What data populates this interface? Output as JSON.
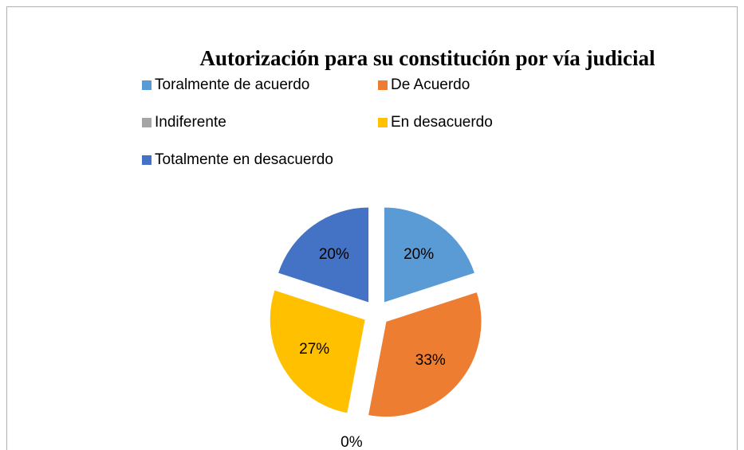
{
  "chart_data": {
    "type": "pie",
    "title": "Autorización para su constitución por vía judicial",
    "categories": [
      "Toralmente de acuerdo",
      "De Acuerdo",
      "Indiferente",
      "En desacuerdo",
      "Totalmente en desacuerdo"
    ],
    "values": [
      20,
      33,
      0,
      27,
      20
    ],
    "value_labels": [
      "20%",
      "33%",
      "0%",
      "27%",
      "20%"
    ],
    "colors": [
      "#5b9bd5",
      "#ed7d31",
      "#a5a5a5",
      "#ffc000",
      "#4472c4"
    ],
    "legend": "top"
  }
}
